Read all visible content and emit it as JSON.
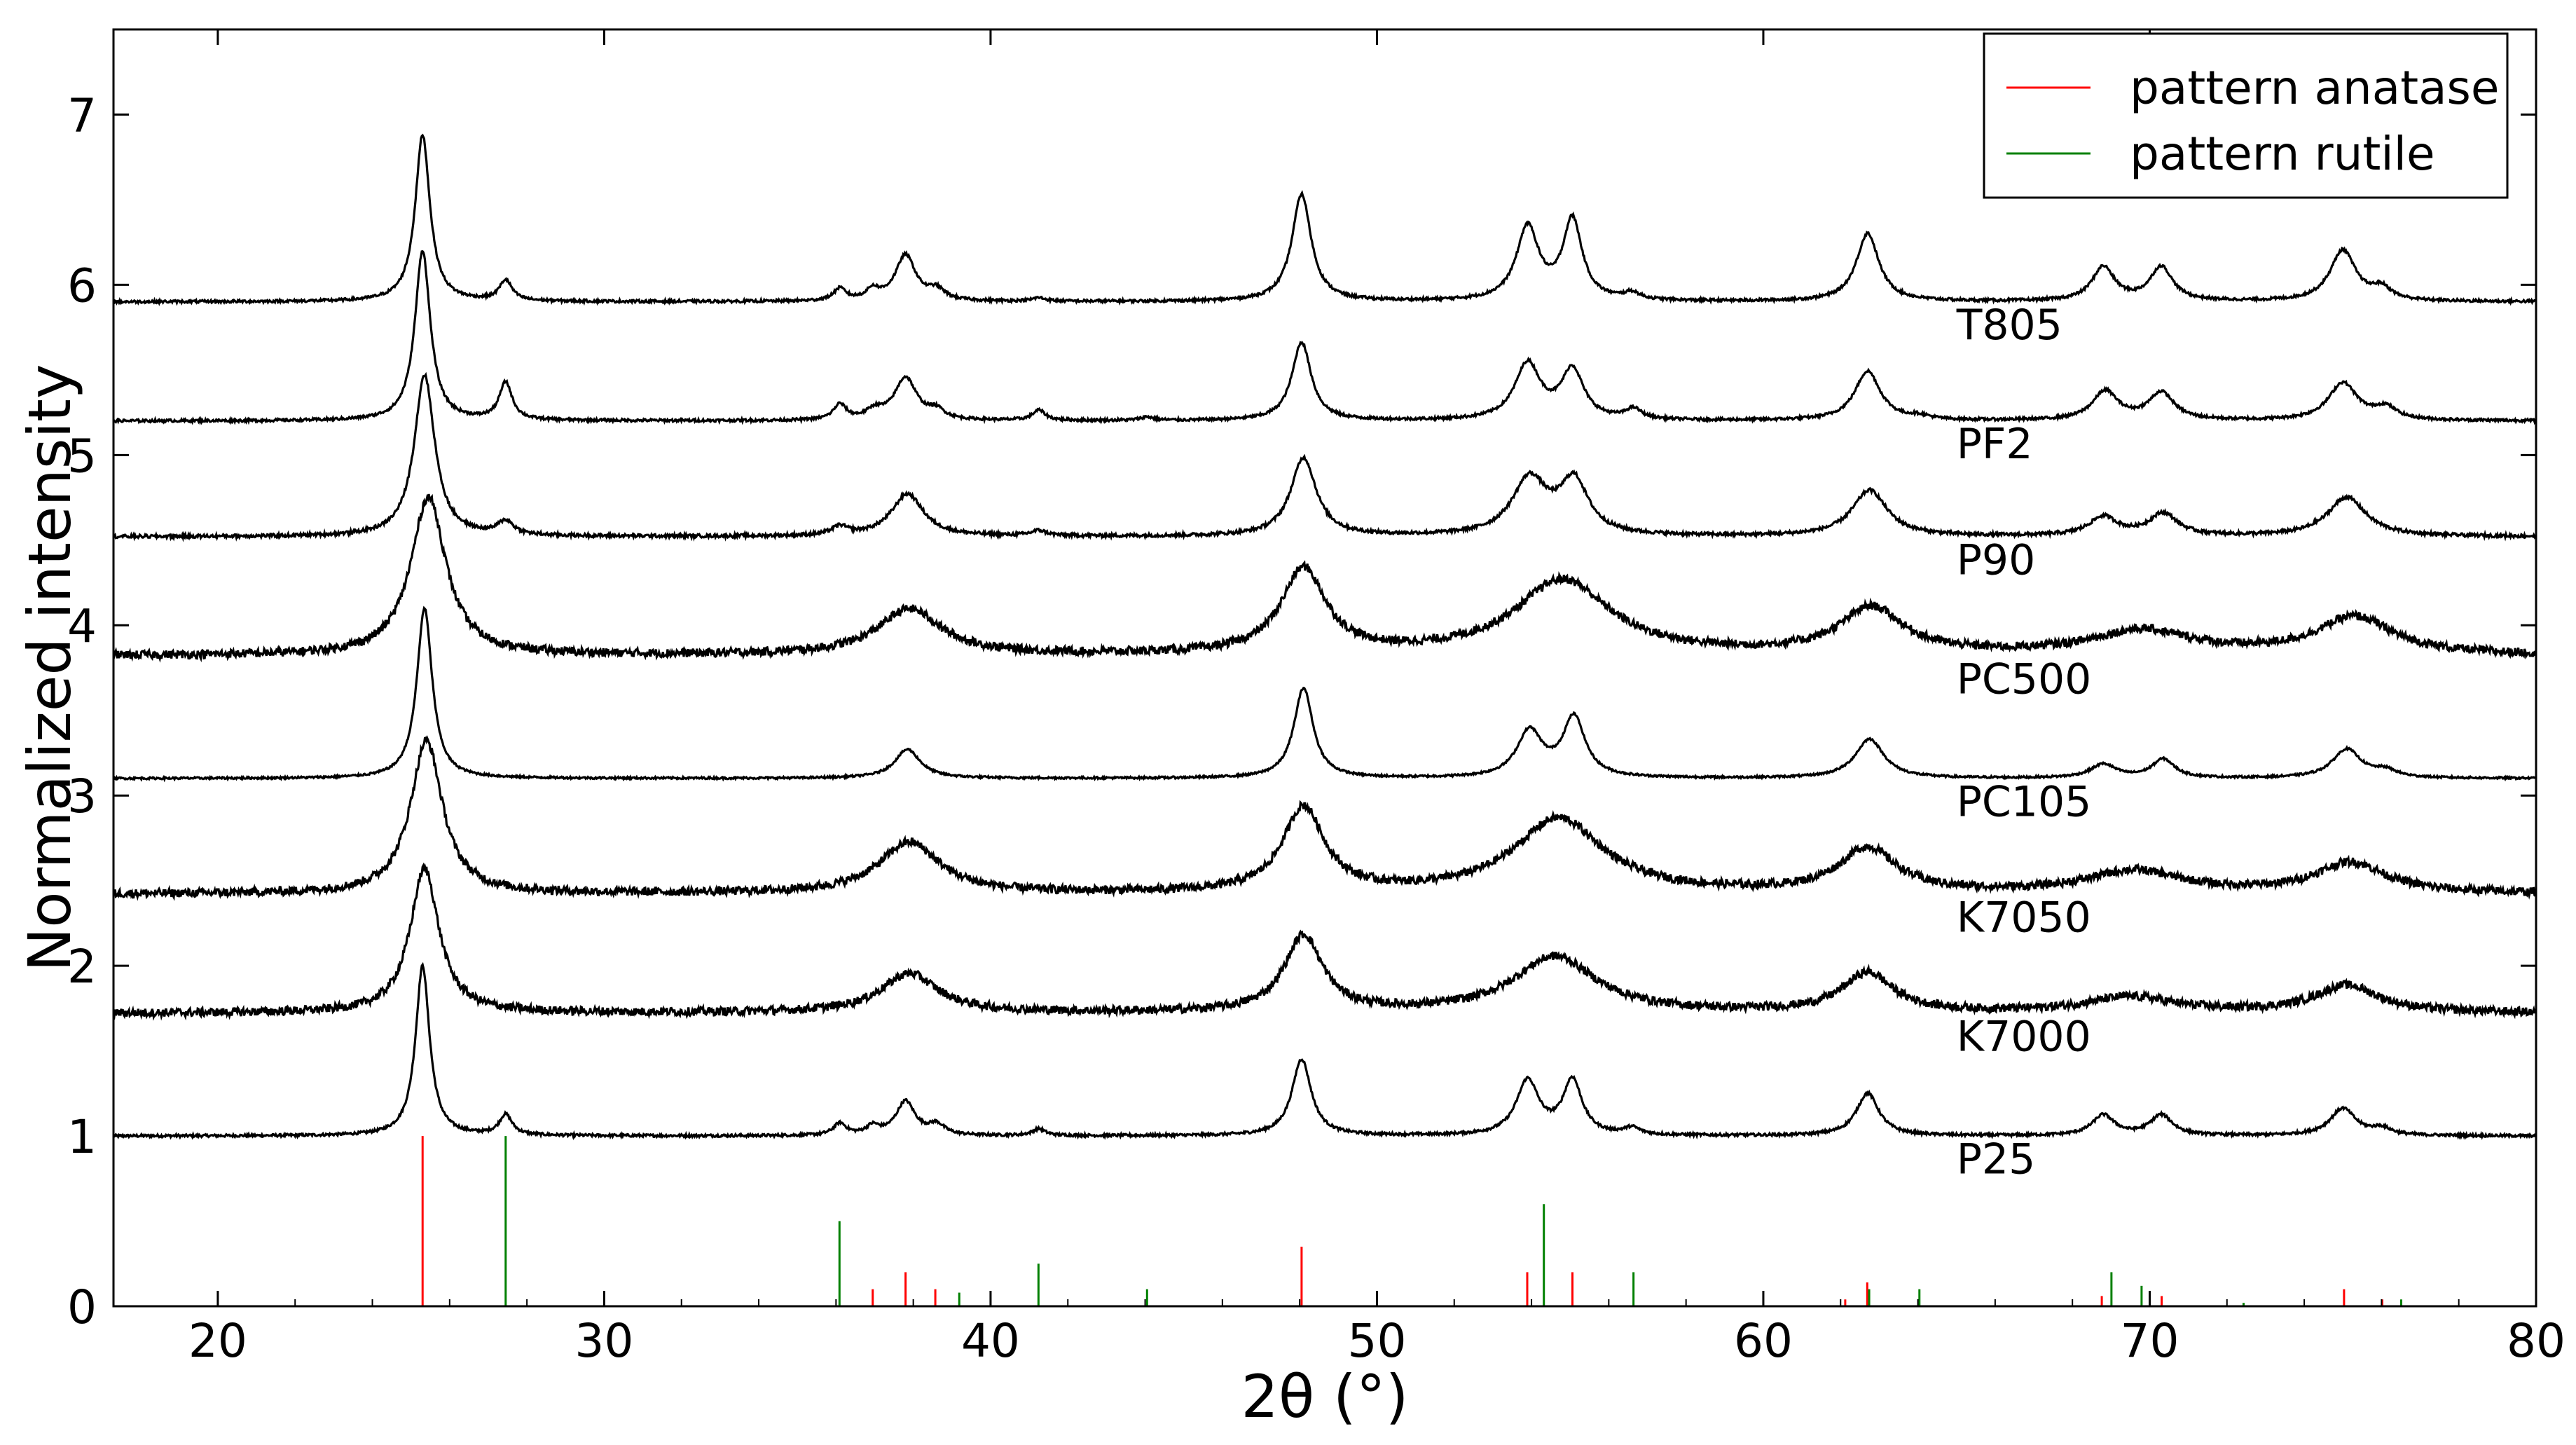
{
  "chart_data": {
    "type": "line",
    "title": "",
    "xlabel": "2θ (°)",
    "ylabel": "Normalized intensity",
    "xlim": [
      17.3,
      80
    ],
    "ylim": [
      0,
      7.5
    ],
    "xticks": [
      20,
      30,
      40,
      50,
      60,
      70,
      80
    ],
    "yticks": [
      0,
      1,
      2,
      3,
      4,
      5,
      6,
      7
    ],
    "grid": false,
    "legend_position": "top-right",
    "anatase_peaks": [
      {
        "x": 25.3,
        "y": 1.0
      },
      {
        "x": 36.95,
        "y": 0.1
      },
      {
        "x": 37.8,
        "y": 0.2
      },
      {
        "x": 38.57,
        "y": 0.1
      },
      {
        "x": 48.05,
        "y": 0.35
      },
      {
        "x": 53.89,
        "y": 0.2
      },
      {
        "x": 55.06,
        "y": 0.2
      },
      {
        "x": 62.12,
        "y": 0.04
      },
      {
        "x": 62.69,
        "y": 0.14
      },
      {
        "x": 68.76,
        "y": 0.06
      },
      {
        "x": 70.31,
        "y": 0.06
      },
      {
        "x": 75.03,
        "y": 0.1
      },
      {
        "x": 76.02,
        "y": 0.04
      }
    ],
    "rutile_peaks": [
      {
        "x": 27.45,
        "y": 1.0
      },
      {
        "x": 36.09,
        "y": 0.5
      },
      {
        "x": 39.19,
        "y": 0.08
      },
      {
        "x": 41.24,
        "y": 0.25
      },
      {
        "x": 44.05,
        "y": 0.1
      },
      {
        "x": 54.32,
        "y": 0.6
      },
      {
        "x": 56.64,
        "y": 0.2
      },
      {
        "x": 62.74,
        "y": 0.1
      },
      {
        "x": 64.04,
        "y": 0.1
      },
      {
        "x": 69.01,
        "y": 0.2
      },
      {
        "x": 69.79,
        "y": 0.12
      },
      {
        "x": 72.43,
        "y": 0.02
      },
      {
        "x": 76.51,
        "y": 0.04
      }
    ],
    "series": [
      {
        "label": "P25",
        "baseline": 1.0,
        "noise": 0.008,
        "peaks": [
          [
            25.3,
            1.0,
            0.22
          ],
          [
            27.45,
            0.12,
            0.2
          ],
          [
            36.1,
            0.07,
            0.2
          ],
          [
            36.95,
            0.05,
            0.2
          ],
          [
            37.8,
            0.2,
            0.3
          ],
          [
            38.6,
            0.06,
            0.25
          ],
          [
            41.25,
            0.04,
            0.2
          ],
          [
            48.05,
            0.45,
            0.3
          ],
          [
            53.9,
            0.32,
            0.35
          ],
          [
            55.06,
            0.32,
            0.3
          ],
          [
            56.6,
            0.04,
            0.25
          ],
          [
            62.7,
            0.25,
            0.35
          ],
          [
            68.8,
            0.12,
            0.35
          ],
          [
            70.3,
            0.12,
            0.35
          ],
          [
            75.0,
            0.16,
            0.4
          ],
          [
            76.0,
            0.04,
            0.3
          ]
        ]
      },
      {
        "label": "K7000",
        "baseline": 1.72,
        "noise": 0.025,
        "peaks": [
          [
            25.35,
            0.85,
            0.45
          ],
          [
            37.9,
            0.23,
            0.9
          ],
          [
            48.1,
            0.45,
            0.6
          ],
          [
            54.6,
            0.33,
            1.3
          ],
          [
            62.7,
            0.23,
            0.8
          ],
          [
            69.5,
            0.09,
            1.4
          ],
          [
            75.1,
            0.16,
            1.0
          ]
        ]
      },
      {
        "label": "K7050",
        "baseline": 2.42,
        "noise": 0.025,
        "peaks": [
          [
            25.4,
            0.9,
            0.5
          ],
          [
            37.9,
            0.3,
            0.95
          ],
          [
            48.1,
            0.5,
            0.65
          ],
          [
            54.7,
            0.44,
            1.4
          ],
          [
            62.7,
            0.26,
            0.9
          ],
          [
            69.6,
            0.13,
            1.5
          ],
          [
            75.2,
            0.18,
            1.1
          ]
        ]
      },
      {
        "label": "PC105",
        "baseline": 3.1,
        "noise": 0.006,
        "peaks": [
          [
            25.35,
            1.0,
            0.24
          ],
          [
            37.85,
            0.17,
            0.4
          ],
          [
            48.1,
            0.53,
            0.3
          ],
          [
            53.95,
            0.27,
            0.4
          ],
          [
            55.1,
            0.35,
            0.35
          ],
          [
            62.75,
            0.23,
            0.45
          ],
          [
            68.8,
            0.08,
            0.4
          ],
          [
            70.35,
            0.11,
            0.35
          ],
          [
            75.1,
            0.17,
            0.45
          ],
          [
            76.1,
            0.04,
            0.35
          ]
        ]
      },
      {
        "label": "PC500",
        "baseline": 3.82,
        "noise": 0.025,
        "peaks": [
          [
            25.45,
            0.93,
            0.55
          ],
          [
            37.9,
            0.27,
            1.0
          ],
          [
            48.1,
            0.5,
            0.7
          ],
          [
            54.8,
            0.44,
            1.5
          ],
          [
            62.8,
            0.27,
            1.0
          ],
          [
            69.8,
            0.14,
            1.6
          ],
          [
            75.3,
            0.22,
            1.2
          ]
        ]
      },
      {
        "label": "P90",
        "baseline": 4.52,
        "noise": 0.01,
        "peaks": [
          [
            25.35,
            0.95,
            0.32
          ],
          [
            27.45,
            0.08,
            0.25
          ],
          [
            36.1,
            0.05,
            0.25
          ],
          [
            37.85,
            0.25,
            0.5
          ],
          [
            41.25,
            0.03,
            0.25
          ],
          [
            48.1,
            0.46,
            0.4
          ],
          [
            53.95,
            0.33,
            0.55
          ],
          [
            55.1,
            0.31,
            0.45
          ],
          [
            62.75,
            0.27,
            0.55
          ],
          [
            68.8,
            0.11,
            0.45
          ],
          [
            70.35,
            0.13,
            0.45
          ],
          [
            75.1,
            0.23,
            0.6
          ]
        ]
      },
      {
        "label": "PF2",
        "baseline": 5.2,
        "noise": 0.008,
        "peaks": [
          [
            25.3,
            1.0,
            0.24
          ],
          [
            27.45,
            0.22,
            0.2
          ],
          [
            36.1,
            0.09,
            0.2
          ],
          [
            37.0,
            0.05,
            0.25
          ],
          [
            37.8,
            0.25,
            0.35
          ],
          [
            38.6,
            0.05,
            0.25
          ],
          [
            41.25,
            0.06,
            0.2
          ],
          [
            44.05,
            0.02,
            0.2
          ],
          [
            48.05,
            0.46,
            0.3
          ],
          [
            53.9,
            0.33,
            0.4
          ],
          [
            55.06,
            0.29,
            0.35
          ],
          [
            56.64,
            0.06,
            0.25
          ],
          [
            62.7,
            0.29,
            0.4
          ],
          [
            64.04,
            0.02,
            0.3
          ],
          [
            68.85,
            0.17,
            0.4
          ],
          [
            70.3,
            0.16,
            0.4
          ],
          [
            75.0,
            0.22,
            0.45
          ],
          [
            76.1,
            0.07,
            0.35
          ]
        ]
      },
      {
        "label": "T805",
        "baseline": 5.9,
        "noise": 0.008,
        "peaks": [
          [
            25.3,
            0.98,
            0.23
          ],
          [
            27.45,
            0.12,
            0.2
          ],
          [
            36.1,
            0.07,
            0.2
          ],
          [
            36.95,
            0.06,
            0.2
          ],
          [
            37.8,
            0.27,
            0.32
          ],
          [
            38.6,
            0.06,
            0.25
          ],
          [
            41.25,
            0.02,
            0.2
          ],
          [
            48.05,
            0.63,
            0.3
          ],
          [
            53.9,
            0.43,
            0.35
          ],
          [
            55.06,
            0.47,
            0.3
          ],
          [
            56.6,
            0.04,
            0.25
          ],
          [
            62.7,
            0.4,
            0.35
          ],
          [
            68.8,
            0.2,
            0.35
          ],
          [
            70.3,
            0.2,
            0.35
          ],
          [
            75.0,
            0.3,
            0.4
          ],
          [
            76.0,
            0.07,
            0.3
          ]
        ]
      }
    ],
    "legend": [
      {
        "label": "pattern anatase",
        "color": "#ff0000"
      },
      {
        "label": "pattern rutile",
        "color": "#008000"
      }
    ]
  },
  "colors": {
    "anatase": "#ff0000",
    "rutile": "#008000",
    "curve": "#000000",
    "axis": "#000000"
  }
}
